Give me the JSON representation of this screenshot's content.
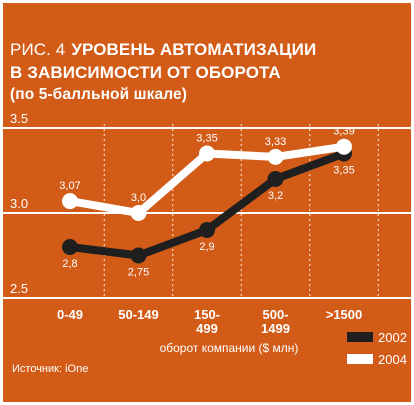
{
  "title": {
    "figure_label": "РИС. 4",
    "line1": "УРОВЕНЬ АВТОМАТИЗАЦИИ",
    "line2": "В ЗАВИСИМОСТИ ОТ ОБОРОТА",
    "subtitle": "(по 5-балльной шкале)"
  },
  "source": "Источник: iOne",
  "colors": {
    "background": "#d25b17",
    "series_2002": "#1f1f1f",
    "series_2004": "#ffffff",
    "grid": "#ffffff"
  },
  "chart_data": {
    "type": "line",
    "title": "УРОВЕНЬ АВТОМАТИЗАЦИИ В ЗАВИСИМОСТИ ОТ ОБОРОТА",
    "subtitle": "(по 5-балльной шкале)",
    "xlabel": "оборот компании ($ млн)",
    "ylabel": "",
    "categories": [
      "0-49",
      "50-149",
      "150-499",
      "500-1499",
      ">1500"
    ],
    "category_lines": [
      [
        "0-49"
      ],
      [
        "50-149"
      ],
      [
        "150-",
        "499"
      ],
      [
        "500-",
        "1499"
      ],
      [
        ">1500"
      ]
    ],
    "yticks": [
      {
        "value": 2.5,
        "label": "2.5"
      },
      {
        "value": 3.0,
        "label": "3.0"
      },
      {
        "value": 3.5,
        "label": "3.5"
      }
    ],
    "ylim": [
      2.5,
      3.5
    ],
    "grid": true,
    "legend_position": "bottom-right",
    "series": [
      {
        "name": "2002",
        "values": [
          2.8,
          2.75,
          2.9,
          3.2,
          3.35
        ],
        "labels": [
          "2,8",
          "2,75",
          "2,9",
          "3,2",
          "3,35"
        ]
      },
      {
        "name": "2004",
        "values": [
          3.07,
          3.0,
          3.35,
          3.33,
          3.39
        ],
        "labels": [
          "3,07",
          "3,0",
          "3,35",
          "3,33",
          "3,39"
        ]
      }
    ]
  }
}
